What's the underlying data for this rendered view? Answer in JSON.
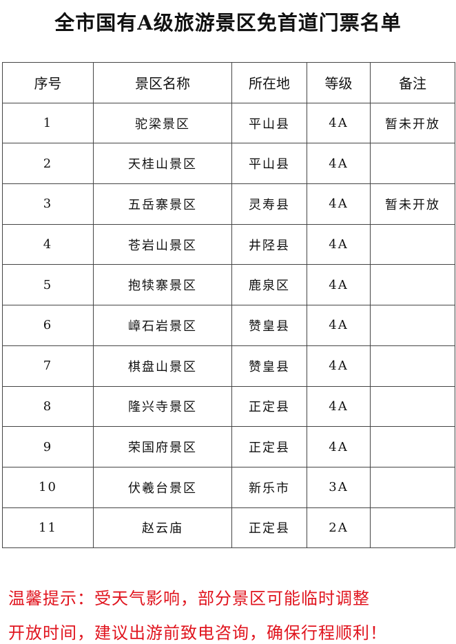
{
  "title": "全市国有A级旅游景区免首道门票名单",
  "table": {
    "headers": [
      "序号",
      "景区名称",
      "所在地",
      "等级",
      "备注"
    ],
    "rows": [
      [
        "1",
        "驼梁景区",
        "平山县",
        "4A",
        "暂未开放"
      ],
      [
        "2",
        "天桂山景区",
        "平山县",
        "4A",
        ""
      ],
      [
        "3",
        "五岳寨景区",
        "灵寿县",
        "4A",
        "暂未开放"
      ],
      [
        "4",
        "苍岩山景区",
        "井陉县",
        "4A",
        ""
      ],
      [
        "5",
        "抱犊寨景区",
        "鹿泉区",
        "4A",
        ""
      ],
      [
        "6",
        "嶂石岩景区",
        "赞皇县",
        "4A",
        ""
      ],
      [
        "7",
        "棋盘山景区",
        "赞皇县",
        "4A",
        ""
      ],
      [
        "8",
        "隆兴寺景区",
        "正定县",
        "4A",
        ""
      ],
      [
        "9",
        "荣国府景区",
        "正定县",
        "4A",
        ""
      ],
      [
        "10",
        "伏羲台景区",
        "新乐市",
        "3A",
        ""
      ],
      [
        "11",
        "赵云庙",
        "正定县",
        "2A",
        ""
      ]
    ]
  },
  "notice": {
    "line1": "温馨提示：受天气影响，部分景区可能临时调整",
    "line2": "开放时间，建议出游前致电咨询，确保行程顺利！",
    "color": "#e0141e"
  }
}
